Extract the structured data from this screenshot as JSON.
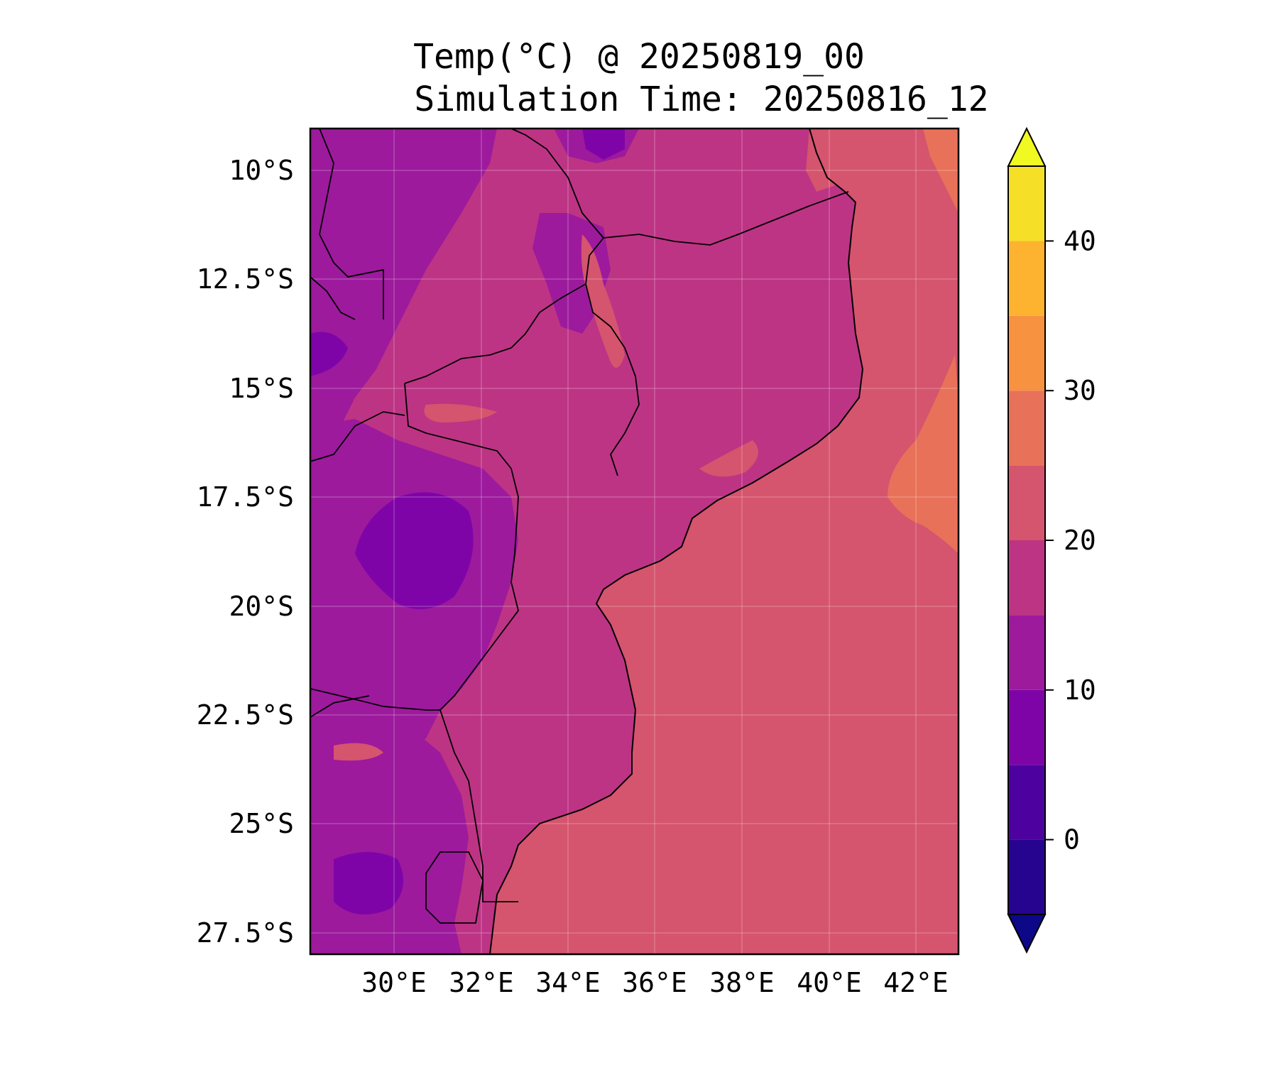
{
  "title": "Temp(°C) @ 20250819_00",
  "subtitle": "Simulation Time: 20250816_12",
  "map": {
    "lat_ticks": [
      "10°S",
      "12.5°S",
      "15°S",
      "17.5°S",
      "20°S",
      "22.5°S",
      "25°S",
      "27.5°S"
    ],
    "lon_ticks": [
      "30°E",
      "32°E",
      "34°E",
      "36°E",
      "38°E",
      "40°E",
      "42°E"
    ]
  },
  "colorbar": {
    "ticks": [
      "0",
      "10",
      "20",
      "30",
      "40"
    ],
    "tick_values": [
      0,
      10,
      20,
      30,
      40
    ],
    "range": [
      -5,
      45
    ],
    "levels": [
      {
        "from": -5,
        "to": 0,
        "color": "#27048f"
      },
      {
        "from": 0,
        "to": 5,
        "color": "#4d02a0"
      },
      {
        "from": 5,
        "to": 10,
        "color": "#7f04a8"
      },
      {
        "from": 10,
        "to": 15,
        "color": "#9d1a9d"
      },
      {
        "from": 15,
        "to": 20,
        "color": "#bd3485"
      },
      {
        "from": 20,
        "to": 25,
        "color": "#d5546e"
      },
      {
        "from": 25,
        "to": 30,
        "color": "#e8715a"
      },
      {
        "from": 30,
        "to": 35,
        "color": "#f79241"
      },
      {
        "from": 35,
        "to": 40,
        "color": "#fdb32f"
      },
      {
        "from": 40,
        "to": 45,
        "color": "#f5e027"
      }
    ],
    "under_color": "#0d0887",
    "over_color": "#f0f921"
  }
}
